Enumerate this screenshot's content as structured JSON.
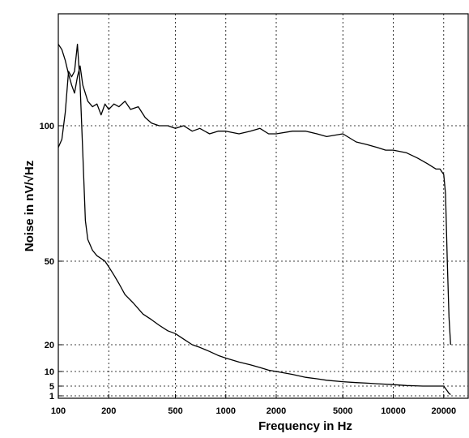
{
  "chart_data": {
    "type": "line",
    "xscale": "log",
    "xlim": [
      100,
      28000
    ],
    "ylim": [
      0,
      200
    ],
    "xlabel": "Frequency in Hz",
    "ylabel": "Noise in nV/√Hz",
    "xticks": [
      100,
      200,
      500,
      1000,
      2000,
      5000,
      10000,
      20000
    ],
    "xtick_labels": [
      "100",
      "200",
      "500",
      "1000",
      "2000",
      "5000",
      "10000",
      "20000"
    ],
    "yticks": [
      1,
      5,
      10,
      20,
      50,
      100
    ],
    "ytick_labels": [
      "1",
      "5",
      "10",
      "20",
      "50",
      "100"
    ],
    "grid": true,
    "series": [
      {
        "x": [
          100,
          105,
          110,
          115,
          120,
          125,
          130,
          135,
          140,
          150,
          160,
          170,
          180,
          190,
          200,
          215,
          230,
          250,
          270,
          300,
          330,
          360,
          400,
          450,
          500,
          560,
          630,
          700,
          800,
          900,
          1000,
          1200,
          1400,
          1600,
          1800,
          2000,
          2500,
          3000,
          3500,
          4000,
          5000,
          6000,
          7000,
          8000,
          9000,
          10000,
          12000,
          14000,
          16000,
          18000,
          19000,
          20000,
          20500,
          21000,
          21500,
          22000
        ],
        "y": [
          130,
          128,
          124,
          119,
          115,
          112,
          118,
          122,
          115,
          109,
          107,
          108,
          104,
          108,
          106,
          108,
          107,
          109,
          106,
          107,
          103,
          101,
          100,
          100,
          99,
          100,
          98,
          99,
          97,
          98,
          98,
          97,
          98,
          99,
          97,
          97,
          98,
          98,
          97,
          96,
          97,
          94,
          93,
          92,
          91,
          91,
          90,
          88,
          86,
          84,
          84,
          82,
          75,
          50,
          30,
          20
        ]
      },
      {
        "x": [
          100,
          105,
          110,
          115,
          120,
          125,
          130,
          135,
          140,
          145,
          150,
          160,
          170,
          180,
          190,
          200,
          215,
          230,
          250,
          280,
          320,
          360,
          400,
          450,
          500,
          560,
          630,
          700,
          800,
          900,
          1000,
          1200,
          1400,
          1600,
          1800,
          2000,
          2500,
          3000,
          3500,
          4000,
          5000,
          6000,
          7000,
          8000,
          10000,
          12000,
          15000,
          18000,
          20000,
          20500,
          21000,
          21500,
          22000
        ],
        "y": [
          92,
          95,
          105,
          120,
          118,
          120,
          130,
          115,
          90,
          65,
          58,
          54,
          52,
          51,
          50,
          48,
          45,
          42,
          38,
          35,
          31,
          29,
          27,
          25,
          24,
          22,
          20,
          19,
          17.5,
          16,
          15,
          13.5,
          12.5,
          11.5,
          10.5,
          10,
          9,
          8,
          7.5,
          7,
          6.5,
          6.2,
          6,
          5.8,
          5.5,
          5.2,
          5,
          5,
          5,
          4,
          3,
          2,
          1.5
        ]
      }
    ]
  }
}
